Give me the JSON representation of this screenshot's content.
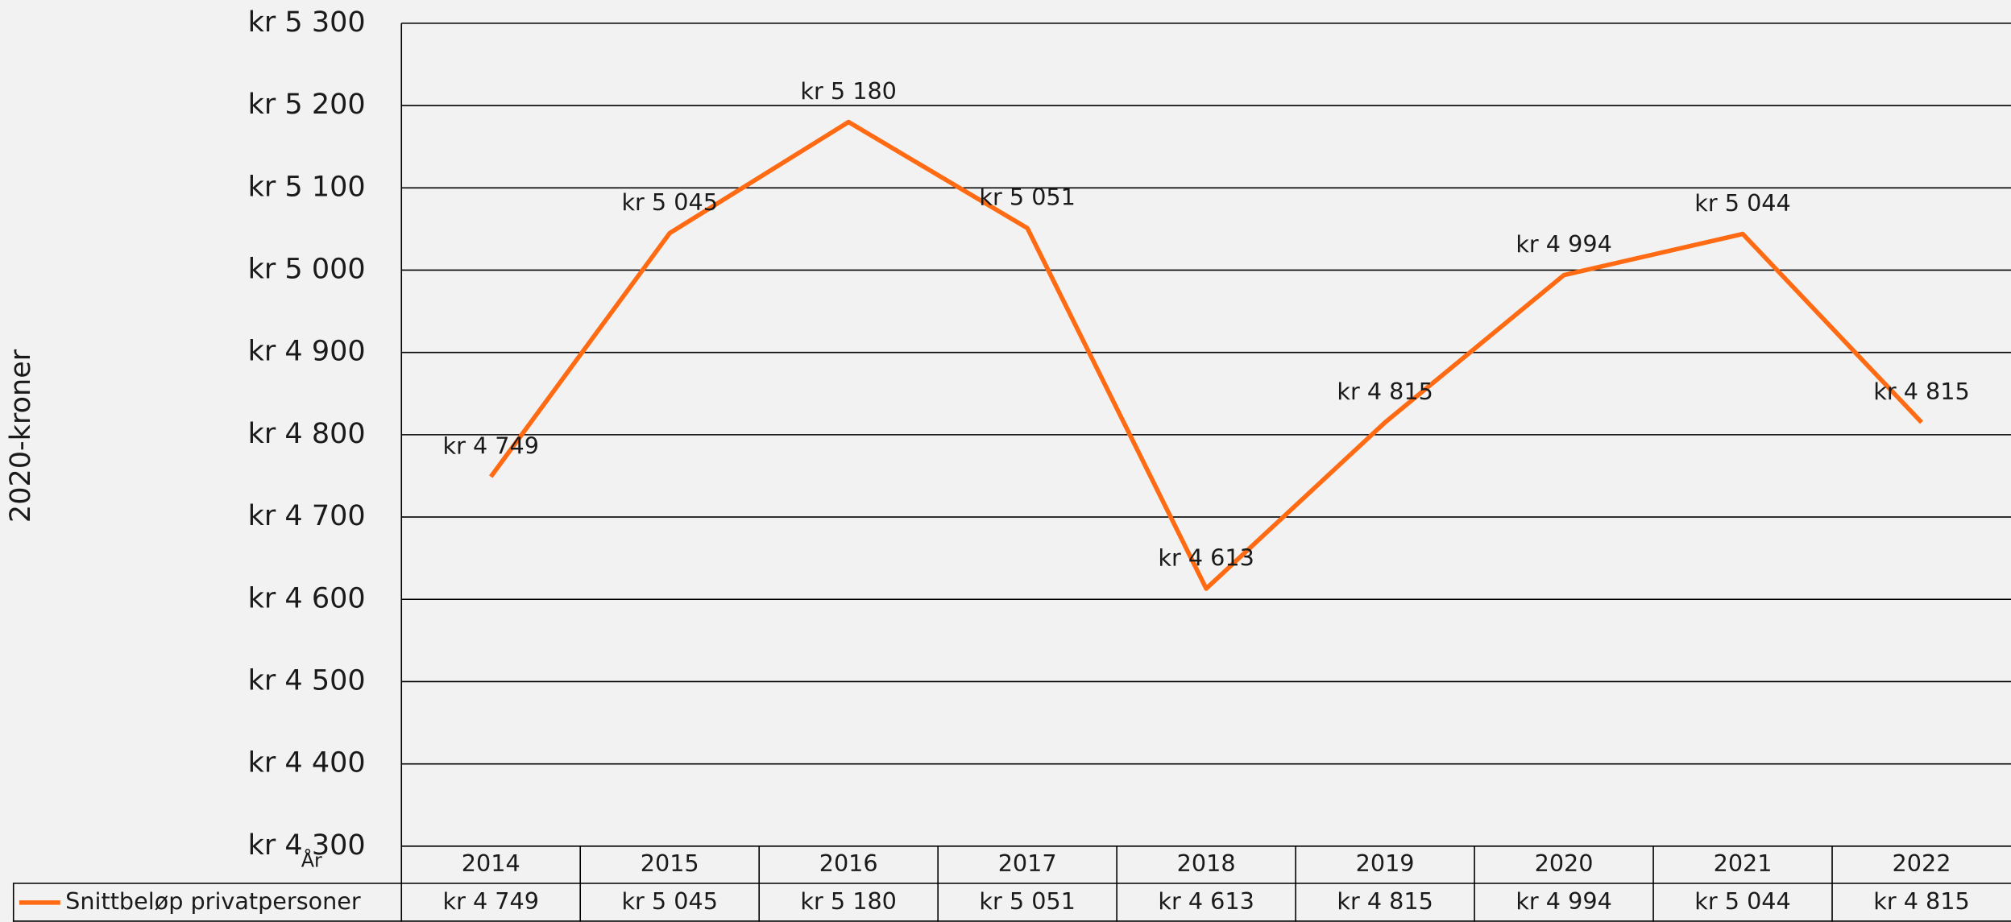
{
  "chart_data": {
    "type": "line",
    "y_axis_label": "2020-kroner",
    "x_axis_label": "År",
    "categories": [
      "2014",
      "2015",
      "2016",
      "2017",
      "2018",
      "2019",
      "2020",
      "2021",
      "2022"
    ],
    "series": [
      {
        "name": "Snittbeløp privatpersoner",
        "color": "#ff6a13",
        "values": [
          4749,
          5045,
          5180,
          5051,
          4613,
          4815,
          4994,
          5044,
          4815
        ],
        "value_labels": [
          "kr 4 749",
          "kr 5 045",
          "kr 5 180",
          "kr 5 051",
          "kr 4 613",
          "kr 4 815",
          "kr 4 994",
          "kr 5 044",
          "kr 4 815"
        ]
      }
    ],
    "ylim": [
      4300,
      5300
    ],
    "yticks": [
      {
        "value": 4300,
        "label": "kr 4 300"
      },
      {
        "value": 4400,
        "label": "kr 4 400"
      },
      {
        "value": 4500,
        "label": "kr 4 500"
      },
      {
        "value": 4600,
        "label": "kr 4 600"
      },
      {
        "value": 4700,
        "label": "kr 4 700"
      },
      {
        "value": 4800,
        "label": "kr 4 800"
      },
      {
        "value": 4900,
        "label": "kr 4 900"
      },
      {
        "value": 5000,
        "label": "kr 5 000"
      },
      {
        "value": 5100,
        "label": "kr 5 100"
      },
      {
        "value": 5200,
        "label": "kr 5 200"
      },
      {
        "value": 5300,
        "label": "kr 5 300"
      }
    ],
    "grid": true
  }
}
